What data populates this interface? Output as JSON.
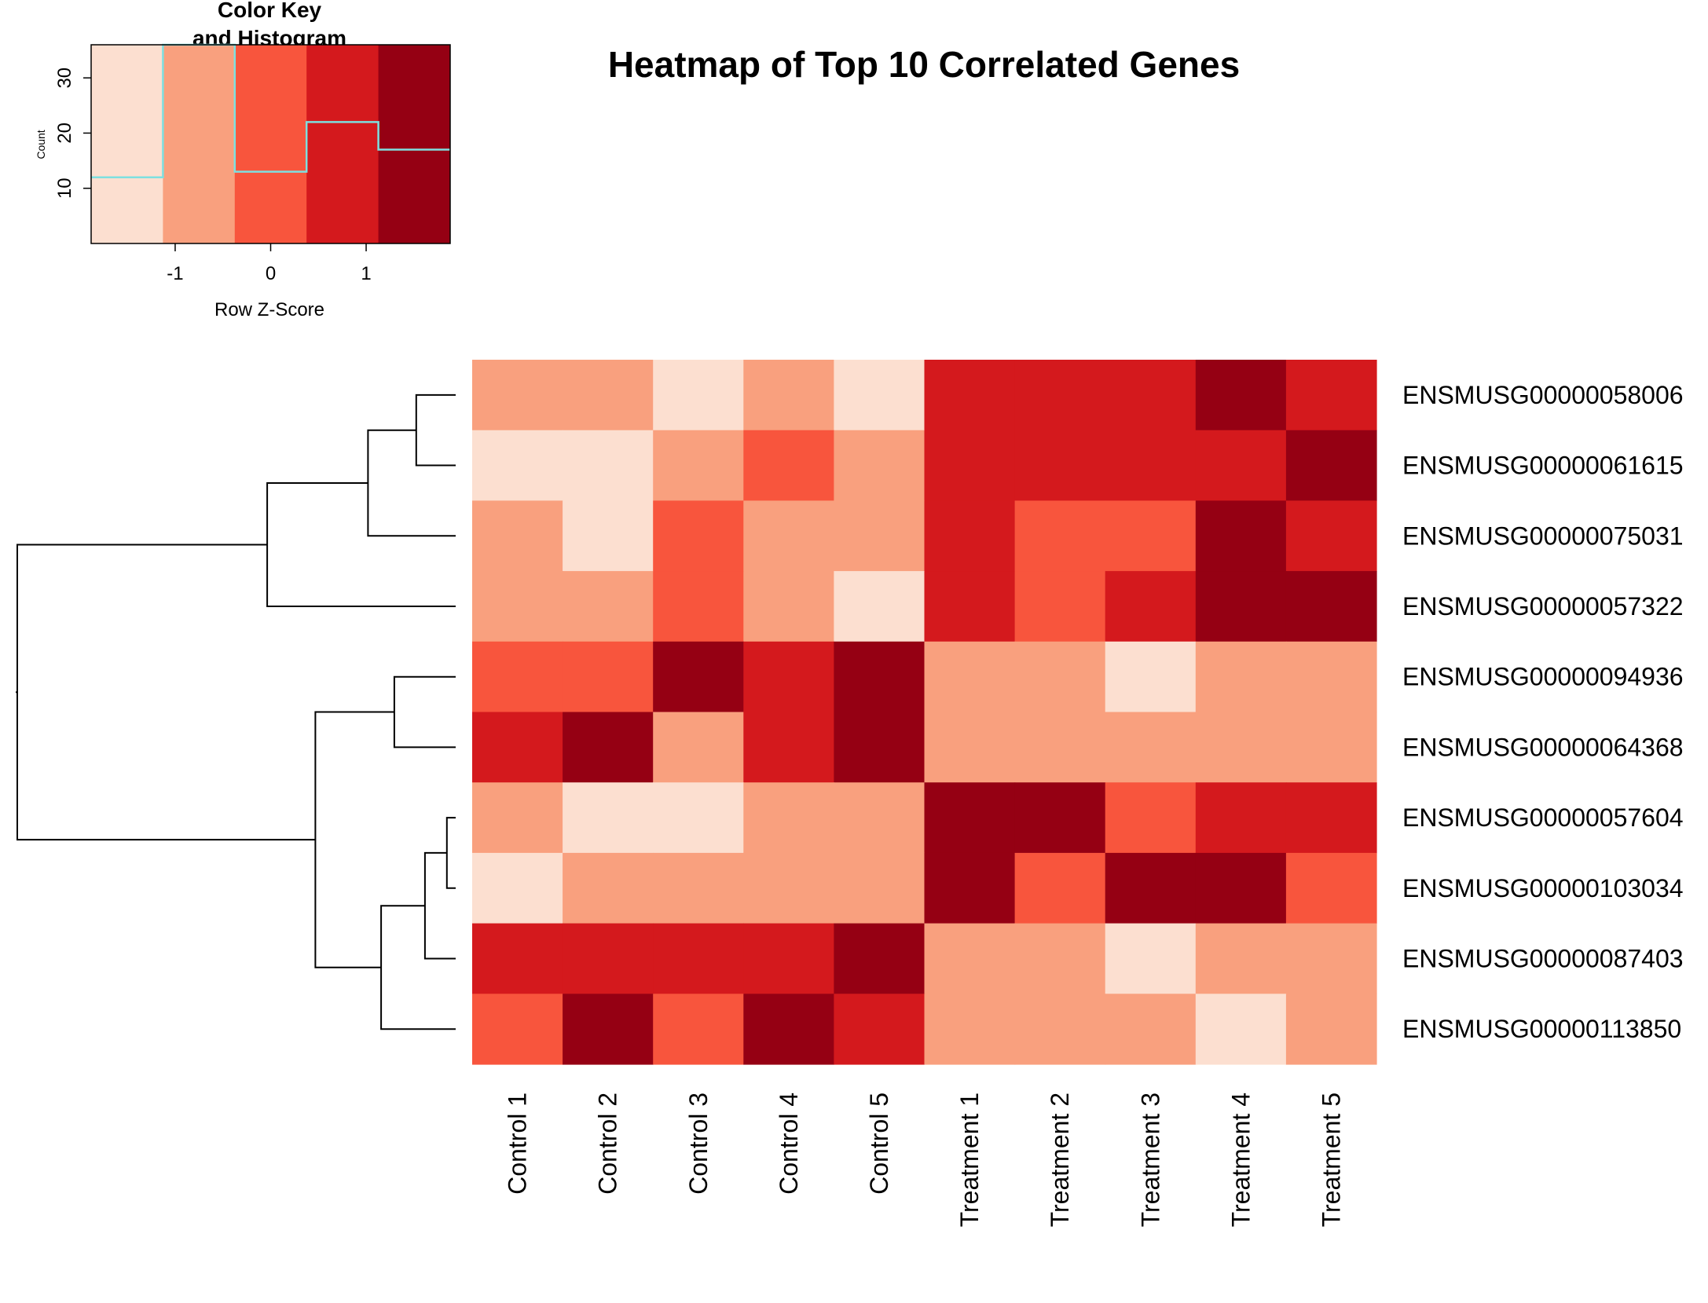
{
  "colors": {
    "scale": [
      "#fcdfd0",
      "#f9a07e",
      "#f8553d",
      "#d4191d",
      "#950013"
    ],
    "histogram_line": "#7ee0e0"
  },
  "chart_data": [
    {
      "type": "heatmap",
      "title": "Heatmap of Top 10 Correlated Genes",
      "columns": [
        "Control 1",
        "Control 2",
        "Control 3",
        "Control 4",
        "Control 5",
        "Treatment 1",
        "Treatment 2",
        "Treatment 3",
        "Treatment 4",
        "Treatment 5"
      ],
      "rows": [
        "ENSMUSG00000058006",
        "ENSMUSG00000061615",
        "ENSMUSG00000075031",
        "ENSMUSG00000057322",
        "ENSMUSG00000094936",
        "ENSMUSG00000064368",
        "ENSMUSG00000057604",
        "ENSMUSG00000103034",
        "ENSMUSG00000087403",
        "ENSMUSG00000113850"
      ],
      "value_bins": [
        [
          1,
          1,
          0,
          1,
          0,
          3,
          3,
          3,
          4,
          3
        ],
        [
          0,
          0,
          1,
          2,
          1,
          3,
          3,
          3,
          3,
          4
        ],
        [
          1,
          0,
          2,
          1,
          1,
          3,
          2,
          2,
          4,
          3
        ],
        [
          1,
          1,
          2,
          1,
          0,
          3,
          2,
          3,
          4,
          4
        ],
        [
          2,
          2,
          4,
          3,
          4,
          1,
          1,
          0,
          1,
          1
        ],
        [
          3,
          4,
          1,
          3,
          4,
          1,
          1,
          1,
          1,
          1
        ],
        [
          1,
          0,
          0,
          1,
          1,
          4,
          4,
          2,
          3,
          3
        ],
        [
          0,
          1,
          1,
          1,
          1,
          4,
          2,
          4,
          4,
          2
        ],
        [
          3,
          3,
          3,
          3,
          4,
          1,
          1,
          0,
          1,
          1
        ],
        [
          2,
          4,
          2,
          4,
          3,
          1,
          1,
          1,
          0,
          1
        ]
      ],
      "row_dendrogram": {
        "merges": [
          [
            -7,
            -8,
            0.02
          ],
          [
            -1,
            -2,
            0.09
          ],
          [
            -9,
            1,
            0.07
          ],
          [
            -5,
            -6,
            0.14
          ],
          [
            -10,
            3,
            0.17
          ],
          [
            2,
            -3,
            0.2
          ],
          [
            6,
            -4,
            0.43
          ],
          [
            4,
            5,
            0.32
          ],
          [
            7,
            8,
            1.0
          ]
        ]
      }
    },
    {
      "type": "histogram",
      "title": "Color Key\nand Histogram",
      "title_lines": [
        "Color Key",
        "and Histogram"
      ],
      "xlabel": "Row Z-Score",
      "ylabel": "Count",
      "xlim": [
        -1.88,
        1.88
      ],
      "ylim": [
        0,
        36
      ],
      "xticks": [
        -1,
        0,
        1
      ],
      "yticks": [
        10,
        20,
        30
      ],
      "bin_edges": [
        -1.88,
        -1.128,
        -0.376,
        0.376,
        1.128,
        1.88
      ],
      "counts": [
        12,
        36,
        13,
        22,
        17
      ]
    }
  ]
}
